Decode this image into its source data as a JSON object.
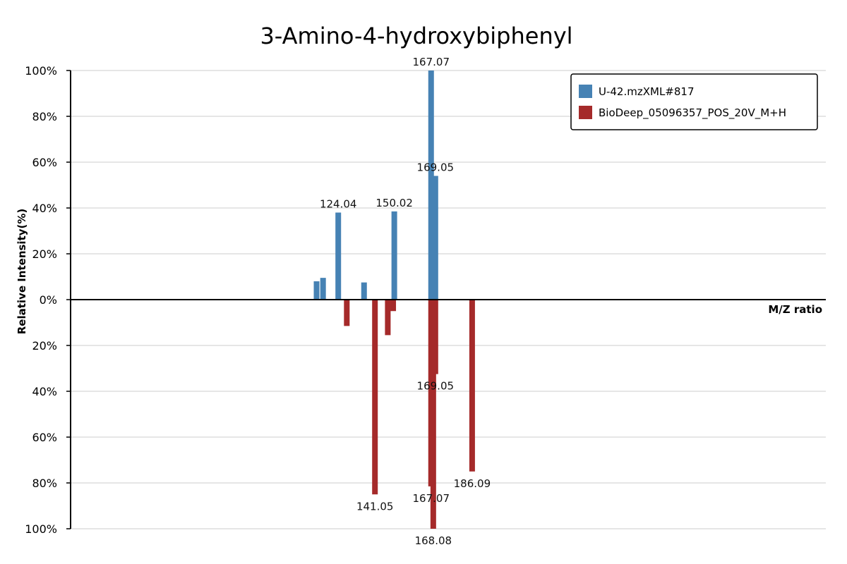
{
  "chart_data": {
    "type": "bar",
    "title": "3-Amino-4-hydroxybiphenyl",
    "xlabel": "M/Z ratio",
    "ylabel": "Relative Intensity(%)",
    "xlim": [
      0,
      350
    ],
    "ylim": [
      -100,
      100
    ],
    "yticks": [
      {
        "value": 100,
        "label": "100%"
      },
      {
        "value": 80,
        "label": "80%"
      },
      {
        "value": 60,
        "label": "60%"
      },
      {
        "value": 40,
        "label": "40%"
      },
      {
        "value": 20,
        "label": "20%"
      },
      {
        "value": 0,
        "label": "0%"
      },
      {
        "value": -20,
        "label": "20%"
      },
      {
        "value": -40,
        "label": "40%"
      },
      {
        "value": -60,
        "label": "60%"
      },
      {
        "value": -80,
        "label": "80%"
      },
      {
        "value": -100,
        "label": "100%"
      }
    ],
    "legend_position": "top-right",
    "series": [
      {
        "name": "U-42.mzXML#817",
        "color": "#4682b4",
        "peaks": [
          {
            "mz": 114.0,
            "intensity": 8,
            "label": ""
          },
          {
            "mz": 117.0,
            "intensity": 9.5,
            "label": ""
          },
          {
            "mz": 136.0,
            "intensity": 7.5,
            "label": ""
          },
          {
            "mz": 124.04,
            "intensity": 38,
            "label": "124.04"
          },
          {
            "mz": 150.02,
            "intensity": 38.5,
            "label": "150.02"
          },
          {
            "mz": 167.07,
            "intensity": 100,
            "label": "167.07"
          },
          {
            "mz": 169.05,
            "intensity": 54,
            "label": "169.05"
          }
        ]
      },
      {
        "name": "BioDeep_05096357_POS_20V_M+H",
        "color": "#a52a2a",
        "peaks": [
          {
            "mz": 128.0,
            "intensity": -11.5,
            "label": ""
          },
          {
            "mz": 141.05,
            "intensity": -85,
            "label": "141.05"
          },
          {
            "mz": 147.0,
            "intensity": -15.5,
            "label": ""
          },
          {
            "mz": 149.5,
            "intensity": -5,
            "label": ""
          },
          {
            "mz": 169.05,
            "intensity": -32.5,
            "label": "169.05"
          },
          {
            "mz": 167.07,
            "intensity": -81.5,
            "label": "167.07"
          },
          {
            "mz": 168.08,
            "intensity": -100,
            "label": "168.08"
          },
          {
            "mz": 186.09,
            "intensity": -75,
            "label": "186.09"
          }
        ]
      }
    ]
  }
}
